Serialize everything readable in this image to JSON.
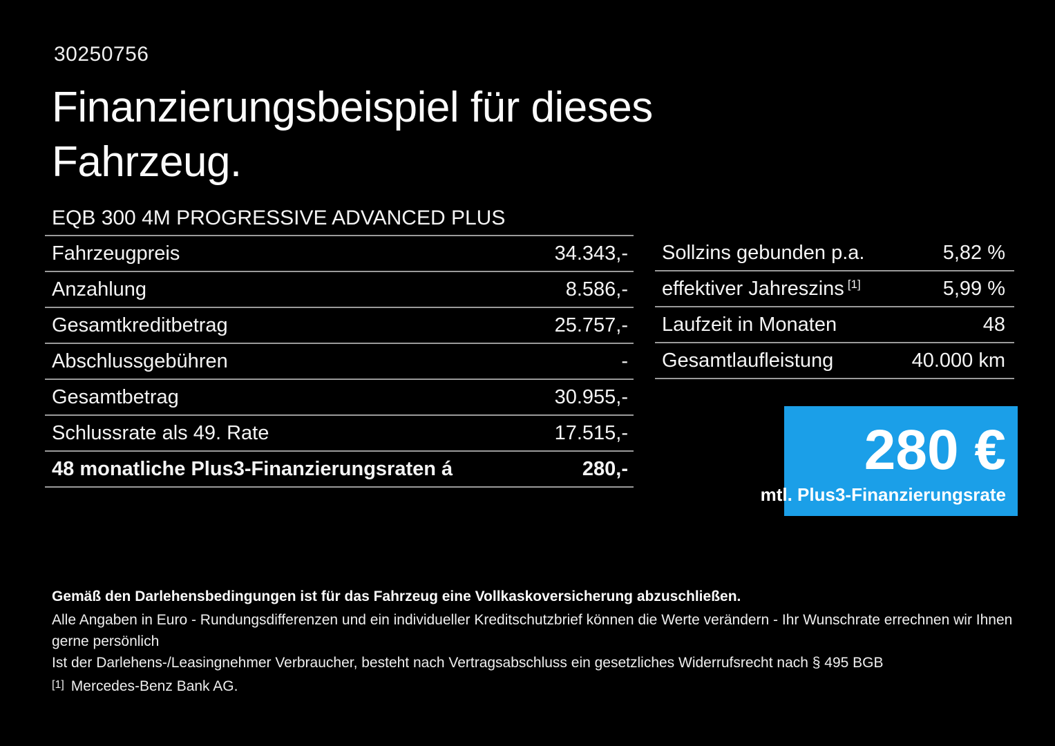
{
  "colors": {
    "background": "#000000",
    "text": "#f4f4f4",
    "divider": "#9b9b9b",
    "accent_blue": "#1b9fe8"
  },
  "header": {
    "reference_number": "30250756",
    "title_line1": "Finanzierungsbeispiel für dieses",
    "title_line2": "Fahrzeug.",
    "vehicle_name": "EQB 300 4M PROGRESSIVE ADVANCED PLUS"
  },
  "financing_table": {
    "rows": [
      {
        "label": "Fahrzeugpreis",
        "value": "34.343,-"
      },
      {
        "label": "Anzahlung",
        "value": "8.586,-"
      },
      {
        "label": "Gesamtkreditbetrag",
        "value": "25.757,-"
      },
      {
        "label": "Abschlussgebühren",
        "value": "-"
      },
      {
        "label": "Gesamtbetrag",
        "value": "30.955,-"
      },
      {
        "label": "Schlussrate als 49. Rate",
        "value": "17.515,-"
      },
      {
        "label": "48 monatliche Plus3-Finanzierungsraten á",
        "value": "280,-"
      }
    ]
  },
  "conditions_table": {
    "rows": [
      {
        "label": "Sollzins gebunden p.a.",
        "sup": "",
        "value": "5,82 %"
      },
      {
        "label": "effektiver Jahreszins",
        "sup": "[1]",
        "value": "5,99 %"
      },
      {
        "label": "Laufzeit in Monaten",
        "sup": "",
        "value": "48"
      },
      {
        "label": "Gesamtlaufleistung",
        "sup": "",
        "value": "40.000 km"
      }
    ]
  },
  "price_box": {
    "amount": "280 €",
    "caption": "mtl. Plus3-Finanzierungsrate"
  },
  "footer": {
    "insurance_note": "Gemäß den Darlehensbedingungen ist für das Fahrzeug eine Vollkaskoversicherung abzuschließen.",
    "note_rounding": "Alle Angaben in Euro - Rundungsdifferenzen und ein individueller Kreditschutzbrief können die Werte verändern - Ihr Wunschrate errechnen wir Ihnen gerne persönlich",
    "note_withdrawal": "Ist der Darlehens-/Leasingnehmer Verbraucher, besteht nach Vertragsabschluss ein gesetzliches Widerrufsrecht nach § 495 BGB",
    "footnote_marker": "[1]",
    "footnote_text": "Mercedes-Benz Bank AG."
  }
}
